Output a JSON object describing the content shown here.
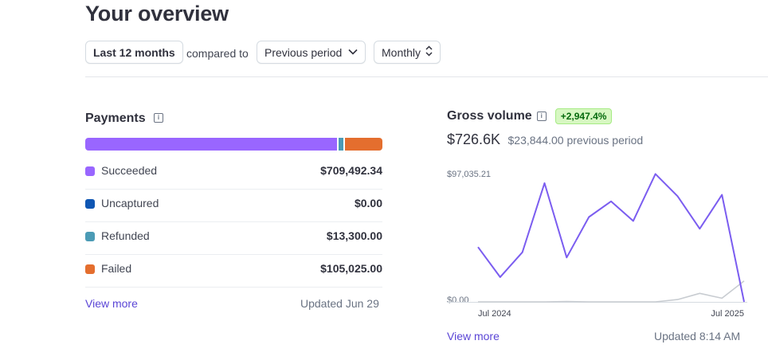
{
  "header": {
    "title": "Your overview"
  },
  "filters": {
    "range_label": "Last 12 months",
    "compared_text": "compared to",
    "compare_label": "Previous period",
    "interval_label": "Monthly"
  },
  "payments": {
    "title": "Payments",
    "items": [
      {
        "label": "Succeeded",
        "value": "$709,492.34",
        "amount": 709492.34,
        "color": "#9966ff"
      },
      {
        "label": "Uncaptured",
        "value": "$0.00",
        "amount": 0,
        "color": "#0f56b3"
      },
      {
        "label": "Refunded",
        "value": "$13,300.00",
        "amount": 13300,
        "color": "#4b9bb5"
      },
      {
        "label": "Failed",
        "value": "$105,025.00",
        "amount": 105025,
        "color": "#e46e2e"
      }
    ],
    "view_more": "View more",
    "updated": "Updated Jun 29"
  },
  "gross_volume": {
    "title": "Gross volume",
    "change_badge": "+2,947.4%",
    "total": "$726.6K",
    "previous": "$23,844.00 previous period",
    "view_more": "View more",
    "updated": "Updated 8:14 AM"
  },
  "chart_data": {
    "type": "line",
    "ylim": [
      0,
      97035.21
    ],
    "ytick_labels": [
      "$97,035.21",
      "$0.00"
    ],
    "xtick_labels": [
      "Jul 2024",
      "Jul 2025"
    ],
    "series": [
      {
        "color": "#7b5df0",
        "values": [
          42000,
          19000,
          38000,
          91000,
          34000,
          65000,
          77000,
          62000,
          98000,
          81000,
          56000,
          82000,
          0
        ]
      },
      {
        "color": "#c8ccd1",
        "values": [
          0,
          0,
          0,
          0,
          300,
          0,
          0,
          0,
          0,
          1800,
          6500,
          2800,
          16000
        ]
      }
    ]
  }
}
